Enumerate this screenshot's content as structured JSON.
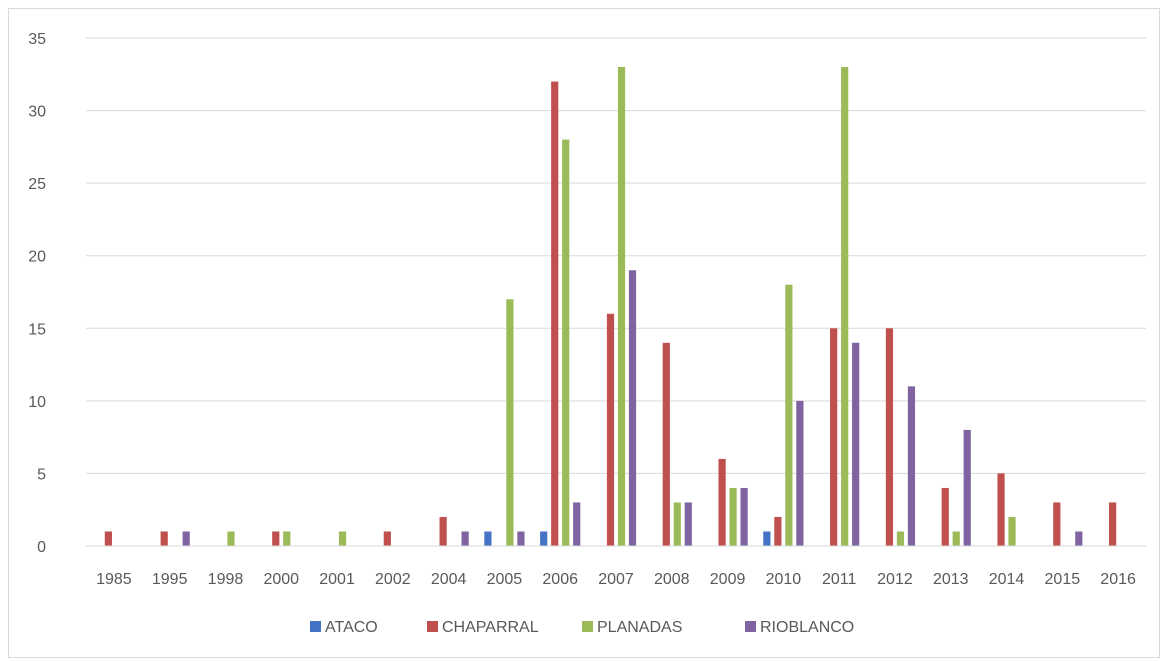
{
  "chart_data": {
    "type": "bar",
    "title": "",
    "xlabel": "",
    "ylabel": "",
    "ylim": [
      0,
      35
    ],
    "yticks": [
      0,
      5,
      10,
      15,
      20,
      25,
      30,
      35
    ],
    "grid": true,
    "legend_position": "bottom",
    "categories": [
      "1985",
      "1995",
      "1998",
      "2000",
      "2001",
      "2002",
      "2004",
      "2005",
      "2006",
      "2007",
      "2008",
      "2009",
      "2010",
      "2011",
      "2012",
      "2013",
      "2014",
      "2015",
      "2016"
    ],
    "series": [
      {
        "name": "ATACO",
        "color": "#4472c4",
        "values": [
          0,
          0,
          0,
          0,
          0,
          0,
          0,
          1,
          1,
          0,
          0,
          0,
          1,
          0,
          0,
          0,
          0,
          0,
          0
        ]
      },
      {
        "name": "CHAPARRAL",
        "color": "#c0504d",
        "values": [
          1,
          1,
          0,
          1,
          0,
          1,
          2,
          0,
          32,
          16,
          14,
          6,
          2,
          15,
          15,
          4,
          5,
          3,
          3
        ]
      },
      {
        "name": "PLANADAS",
        "color": "#9bbb59",
        "values": [
          0,
          0,
          1,
          1,
          1,
          0,
          0,
          17,
          28,
          33,
          3,
          4,
          18,
          33,
          1,
          1,
          2,
          0,
          0
        ]
      },
      {
        "name": "RIOBLANCO",
        "color": "#8064a2",
        "values": [
          0,
          1,
          0,
          0,
          0,
          0,
          1,
          1,
          3,
          19,
          3,
          4,
          10,
          14,
          11,
          8,
          0,
          1,
          0
        ]
      }
    ]
  }
}
